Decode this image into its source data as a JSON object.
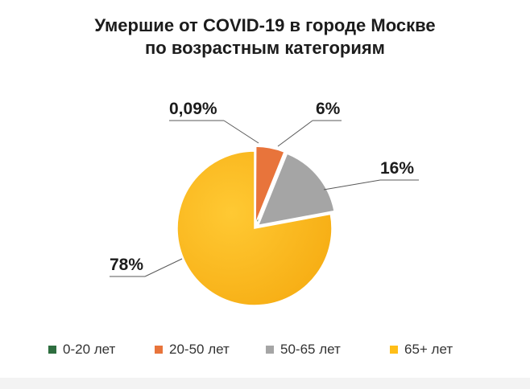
{
  "chart_data": {
    "type": "pie",
    "title": "Умершие от COVID-19 в городе Москве",
    "subtitle": "по возрастным категориям",
    "slices": [
      {
        "name": "0-20 лет",
        "value": 0.09,
        "label": "0,09%",
        "color": "#2e6e3f"
      },
      {
        "name": "20-50 лет",
        "value": 6,
        "label": "6%",
        "color": "#e8743b"
      },
      {
        "name": "50-65 лет",
        "value": 16,
        "label": "16%",
        "color": "#a5a5a5"
      },
      {
        "name": "65+ лет",
        "value": 78,
        "label": "78%",
        "color": "#ffbe18"
      }
    ],
    "legend_position": "bottom",
    "exploded": true
  }
}
